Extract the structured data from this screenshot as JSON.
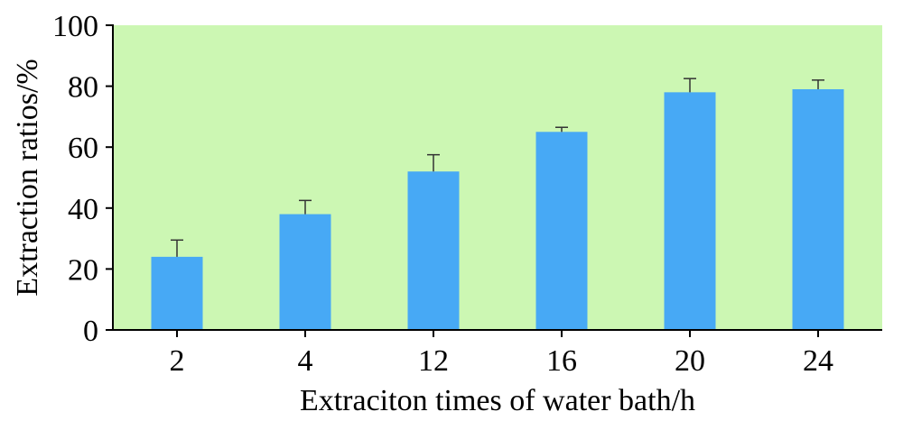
{
  "chart_data": {
    "type": "bar",
    "categories": [
      "2",
      "4",
      "12",
      "16",
      "20",
      "24"
    ],
    "values": [
      24,
      38,
      52,
      65,
      78,
      79
    ],
    "errors": [
      5.5,
      4.5,
      5.5,
      1.5,
      4.5,
      3
    ],
    "xlabel": "Extraciton times of water bath/h",
    "ylabel": "Extraction ratios/%",
    "ylim": [
      0,
      100
    ],
    "yticks": [
      0,
      20,
      40,
      60,
      80,
      100
    ],
    "grid": false,
    "legend": "none",
    "colors": {
      "bar": "#47a9f5",
      "plot_background": "#ccf7b3",
      "axis": "#000000",
      "error_bar": "#333333"
    }
  }
}
